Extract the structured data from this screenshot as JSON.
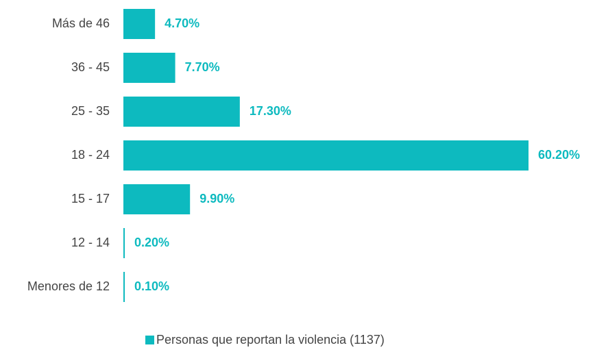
{
  "chart_data": {
    "type": "hbar",
    "categories": [
      "Más de 46",
      "36 - 45",
      "25 - 35",
      "18 - 24",
      "15 - 17",
      "12 - 14",
      "Menores de 12"
    ],
    "series": [
      {
        "name": "Personas que reportan la violencia (1137)",
        "color": "#0dbabf",
        "values": [
          4.7,
          7.7,
          17.3,
          60.2,
          9.9,
          0.2,
          0.1
        ],
        "value_labels": [
          "4.70%",
          "7.70%",
          "17.30%",
          "60.20%",
          "9.90%",
          "0.20%",
          "0.10%"
        ]
      }
    ],
    "legend": "bottom"
  }
}
